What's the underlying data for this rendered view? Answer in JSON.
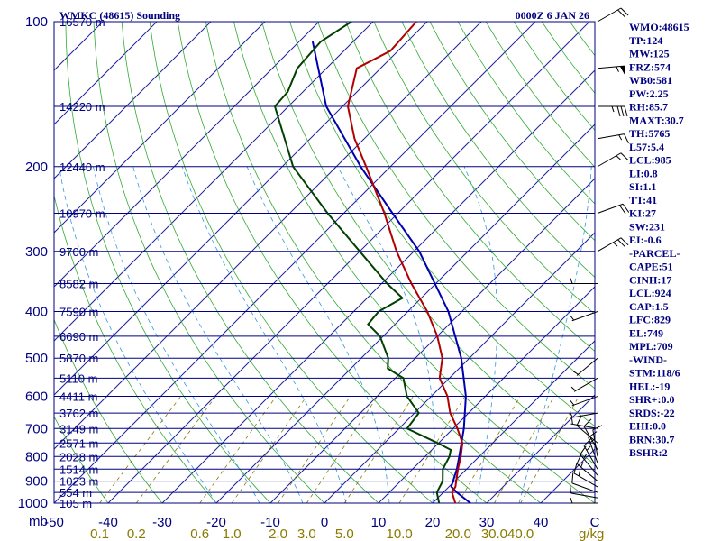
{
  "chart_data": {
    "type": "skew-t",
    "title_left": "WMKC (48615) Sounding",
    "title_right": "0000Z  6 JAN 26",
    "pressure_ticks": [
      100,
      200,
      300,
      400,
      500,
      600,
      700,
      800,
      900,
      1000
    ],
    "pressure_levels": [
      100,
      150,
      200,
      250,
      300,
      350,
      400,
      450,
      500,
      550,
      600,
      650,
      700,
      750,
      800,
      850,
      900,
      950,
      1000
    ],
    "pressure_unit": "mb",
    "height_labels": [
      {
        "p": 100,
        "label": "16570 m"
      },
      {
        "p": 150,
        "label": "14220 m"
      },
      {
        "p": 200,
        "label": "12440 m"
      },
      {
        "p": 250,
        "label": "10970 m"
      },
      {
        "p": 300,
        "label": "9700 m"
      },
      {
        "p": 350,
        "label": "8582 m"
      },
      {
        "p": 400,
        "label": "7590 m"
      },
      {
        "p": 450,
        "label": "6690 m"
      },
      {
        "p": 500,
        "label": "5870 m"
      },
      {
        "p": 550,
        "label": "5110 m"
      },
      {
        "p": 600,
        "label": "4411 m"
      },
      {
        "p": 650,
        "label": "3762 m"
      },
      {
        "p": 700,
        "label": "3149 m"
      },
      {
        "p": 750,
        "label": "2571 m"
      },
      {
        "p": 800,
        "label": "2028 m"
      },
      {
        "p": 850,
        "label": "1514 m"
      },
      {
        "p": 900,
        "label": "1023 m"
      },
      {
        "p": 950,
        "label": "554 m"
      },
      {
        "p": 1000,
        "label": "105 m"
      }
    ],
    "temperature_ticks": [
      -50,
      -40,
      -30,
      -20,
      -10,
      0,
      10,
      20,
      30,
      40
    ],
    "temperature_axis_labels": [
      "-50",
      "-40",
      "-30",
      "-20",
      "-10",
      "0",
      "10",
      "20",
      "30",
      "40",
      "C"
    ],
    "temperature_range": [
      -50,
      50
    ],
    "mixing_ratio_ticks": [
      {
        "w": 0.1,
        "label": "0.1"
      },
      {
        "w": 0.2,
        "label": "0.2"
      },
      {
        "w": 0.6,
        "label": "0.6"
      },
      {
        "w": 1.0,
        "label": "1.0"
      },
      {
        "w": 2.0,
        "label": "2.0"
      },
      {
        "w": 3.0,
        "label": "3.0"
      },
      {
        "w": 5.0,
        "label": "5.0"
      },
      {
        "w": 10.0,
        "label": "10.0"
      },
      {
        "w": 20.0,
        "label": "20.0"
      },
      {
        "w": 30.0,
        "label": "30.0"
      },
      {
        "w": 40.0,
        "label": "40.0"
      }
    ],
    "mixing_ratio_unit": "g/kg",
    "temperature_profile": [
      {
        "p": 1000,
        "t": 24.2
      },
      {
        "p": 950,
        "t": 21.6
      },
      {
        "p": 925,
        "t": 21.2
      },
      {
        "p": 850,
        "t": 18.4
      },
      {
        "p": 800,
        "t": 16.6
      },
      {
        "p": 750,
        "t": 14.4
      },
      {
        "p": 700,
        "t": 10.8
      },
      {
        "p": 650,
        "t": 6.6
      },
      {
        "p": 600,
        "t": 3.0
      },
      {
        "p": 550,
        "t": -1.8
      },
      {
        "p": 500,
        "t": -5.0
      },
      {
        "p": 450,
        "t": -10.0
      },
      {
        "p": 400,
        "t": -16.4
      },
      {
        "p": 350,
        "t": -24.5
      },
      {
        "p": 300,
        "t": -33.2
      },
      {
        "p": 250,
        "t": -42.5
      },
      {
        "p": 200,
        "t": -54.5
      },
      {
        "p": 175,
        "t": -61.8
      },
      {
        "p": 150,
        "t": -69.0
      },
      {
        "p": 125,
        "t": -74.4
      },
      {
        "p": 115,
        "t": -71.4
      },
      {
        "p": 100,
        "t": -72.0
      }
    ],
    "dewpoint_profile": [
      {
        "p": 1000,
        "t": 21.2
      },
      {
        "p": 950,
        "t": 18.8
      },
      {
        "p": 900,
        "t": 17.8
      },
      {
        "p": 850,
        "t": 15.6
      },
      {
        "p": 800,
        "t": 14.5
      },
      {
        "p": 775,
        "t": 13.5
      },
      {
        "p": 750,
        "t": 9.8
      },
      {
        "p": 700,
        "t": 1.5
      },
      {
        "p": 650,
        "t": 0.8
      },
      {
        "p": 600,
        "t": -4.5
      },
      {
        "p": 550,
        "t": -8.5
      },
      {
        "p": 525,
        "t": -13.2
      },
      {
        "p": 500,
        "t": -15.0
      },
      {
        "p": 450,
        "t": -20.6
      },
      {
        "p": 425,
        "t": -25.0
      },
      {
        "p": 400,
        "t": -25.4
      },
      {
        "p": 375,
        "t": -23.5
      },
      {
        "p": 350,
        "t": -29.0
      },
      {
        "p": 300,
        "t": -40.0
      },
      {
        "p": 250,
        "t": -53.0
      },
      {
        "p": 200,
        "t": -68.0
      },
      {
        "p": 150,
        "t": -82.5
      },
      {
        "p": 140,
        "t": -82.8
      },
      {
        "p": 125,
        "t": -85.4
      },
      {
        "p": 110,
        "t": -86.0
      },
      {
        "p": 100,
        "t": -84.0
      }
    ],
    "parcel_profile": [
      {
        "p": 1000,
        "t": 27.0
      },
      {
        "p": 950,
        "t": 22.5
      },
      {
        "p": 924,
        "t": 20.4
      },
      {
        "p": 850,
        "t": 18.2
      },
      {
        "p": 800,
        "t": 16.3
      },
      {
        "p": 700,
        "t": 12.0
      },
      {
        "p": 600,
        "t": 6.4
      },
      {
        "p": 500,
        "t": -1.5
      },
      {
        "p": 400,
        "t": -12.5
      },
      {
        "p": 300,
        "t": -29.0
      },
      {
        "p": 250,
        "t": -41.0
      },
      {
        "p": 200,
        "t": -55.5
      },
      {
        "p": 150,
        "t": -73.0
      },
      {
        "p": 110,
        "t": -87.5
      }
    ],
    "series": [
      {
        "name": "Temperature",
        "color": "#b00000"
      },
      {
        "name": "Dewpoint",
        "color": "#004000"
      },
      {
        "name": "Parcel",
        "color": "#0000b0"
      }
    ],
    "wind_barbs": [
      {
        "p": 1000,
        "dir": 270,
        "spd": 5
      },
      {
        "p": 975,
        "dir": 280,
        "spd": 10
      },
      {
        "p": 950,
        "dir": 290,
        "spd": 10
      },
      {
        "p": 925,
        "dir": 300,
        "spd": 15
      },
      {
        "p": 900,
        "dir": 310,
        "spd": 15
      },
      {
        "p": 875,
        "dir": 320,
        "spd": 15
      },
      {
        "p": 850,
        "dir": 330,
        "spd": 15
      },
      {
        "p": 825,
        "dir": 340,
        "spd": 15
      },
      {
        "p": 800,
        "dir": 350,
        "spd": 10
      },
      {
        "p": 775,
        "dir": 330,
        "spd": 10
      },
      {
        "p": 750,
        "dir": 310,
        "spd": 10
      },
      {
        "p": 700,
        "dir": 280,
        "spd": 5
      },
      {
        "p": 650,
        "dir": 260,
        "spd": 5
      },
      {
        "p": 600,
        "dir": 250,
        "spd": 5
      },
      {
        "p": 550,
        "dir": 240,
        "spd": 5
      },
      {
        "p": 500,
        "dir": 230,
        "spd": 5
      },
      {
        "p": 400,
        "dir": 250,
        "spd": 5
      },
      {
        "p": 350,
        "dir": 270,
        "spd": 5
      },
      {
        "p": 300,
        "dir": 60,
        "spd": 25
      },
      {
        "p": 250,
        "dir": 70,
        "spd": 20
      },
      {
        "p": 200,
        "dir": 60,
        "spd": 15
      },
      {
        "p": 175,
        "dir": 80,
        "spd": 15
      },
      {
        "p": 150,
        "dir": 90,
        "spd": 35
      },
      {
        "p": 125,
        "dir": 85,
        "spd": 55
      },
      {
        "p": 100,
        "dir": 60,
        "spd": 20
      }
    ],
    "indices": [
      "WMO:48615",
      "TP:124",
      "MW:125",
      "FRZ:574",
      "WB0:581",
      "PW:2.25",
      "RH:85.7",
      "MAXT:30.7",
      "TH:5765",
      "L57:5.4",
      "LCL:985",
      "LI:0.8",
      "SI:1.1",
      "TT:41",
      "KI:27",
      "SW:231",
      "EI:-0.6",
      "-PARCEL-",
      "CAPE:51",
      "CINH:17",
      "LCL:924",
      "CAP:1.5",
      "LFC:829",
      "EL:749",
      "MPL:709",
      "-WIND-",
      "STM:118/6",
      "HEL:-19",
      "SHR+:0.0",
      "SRDS:-22",
      "EHI:0.0",
      "BRN:30.7",
      "BSHR:2"
    ]
  }
}
